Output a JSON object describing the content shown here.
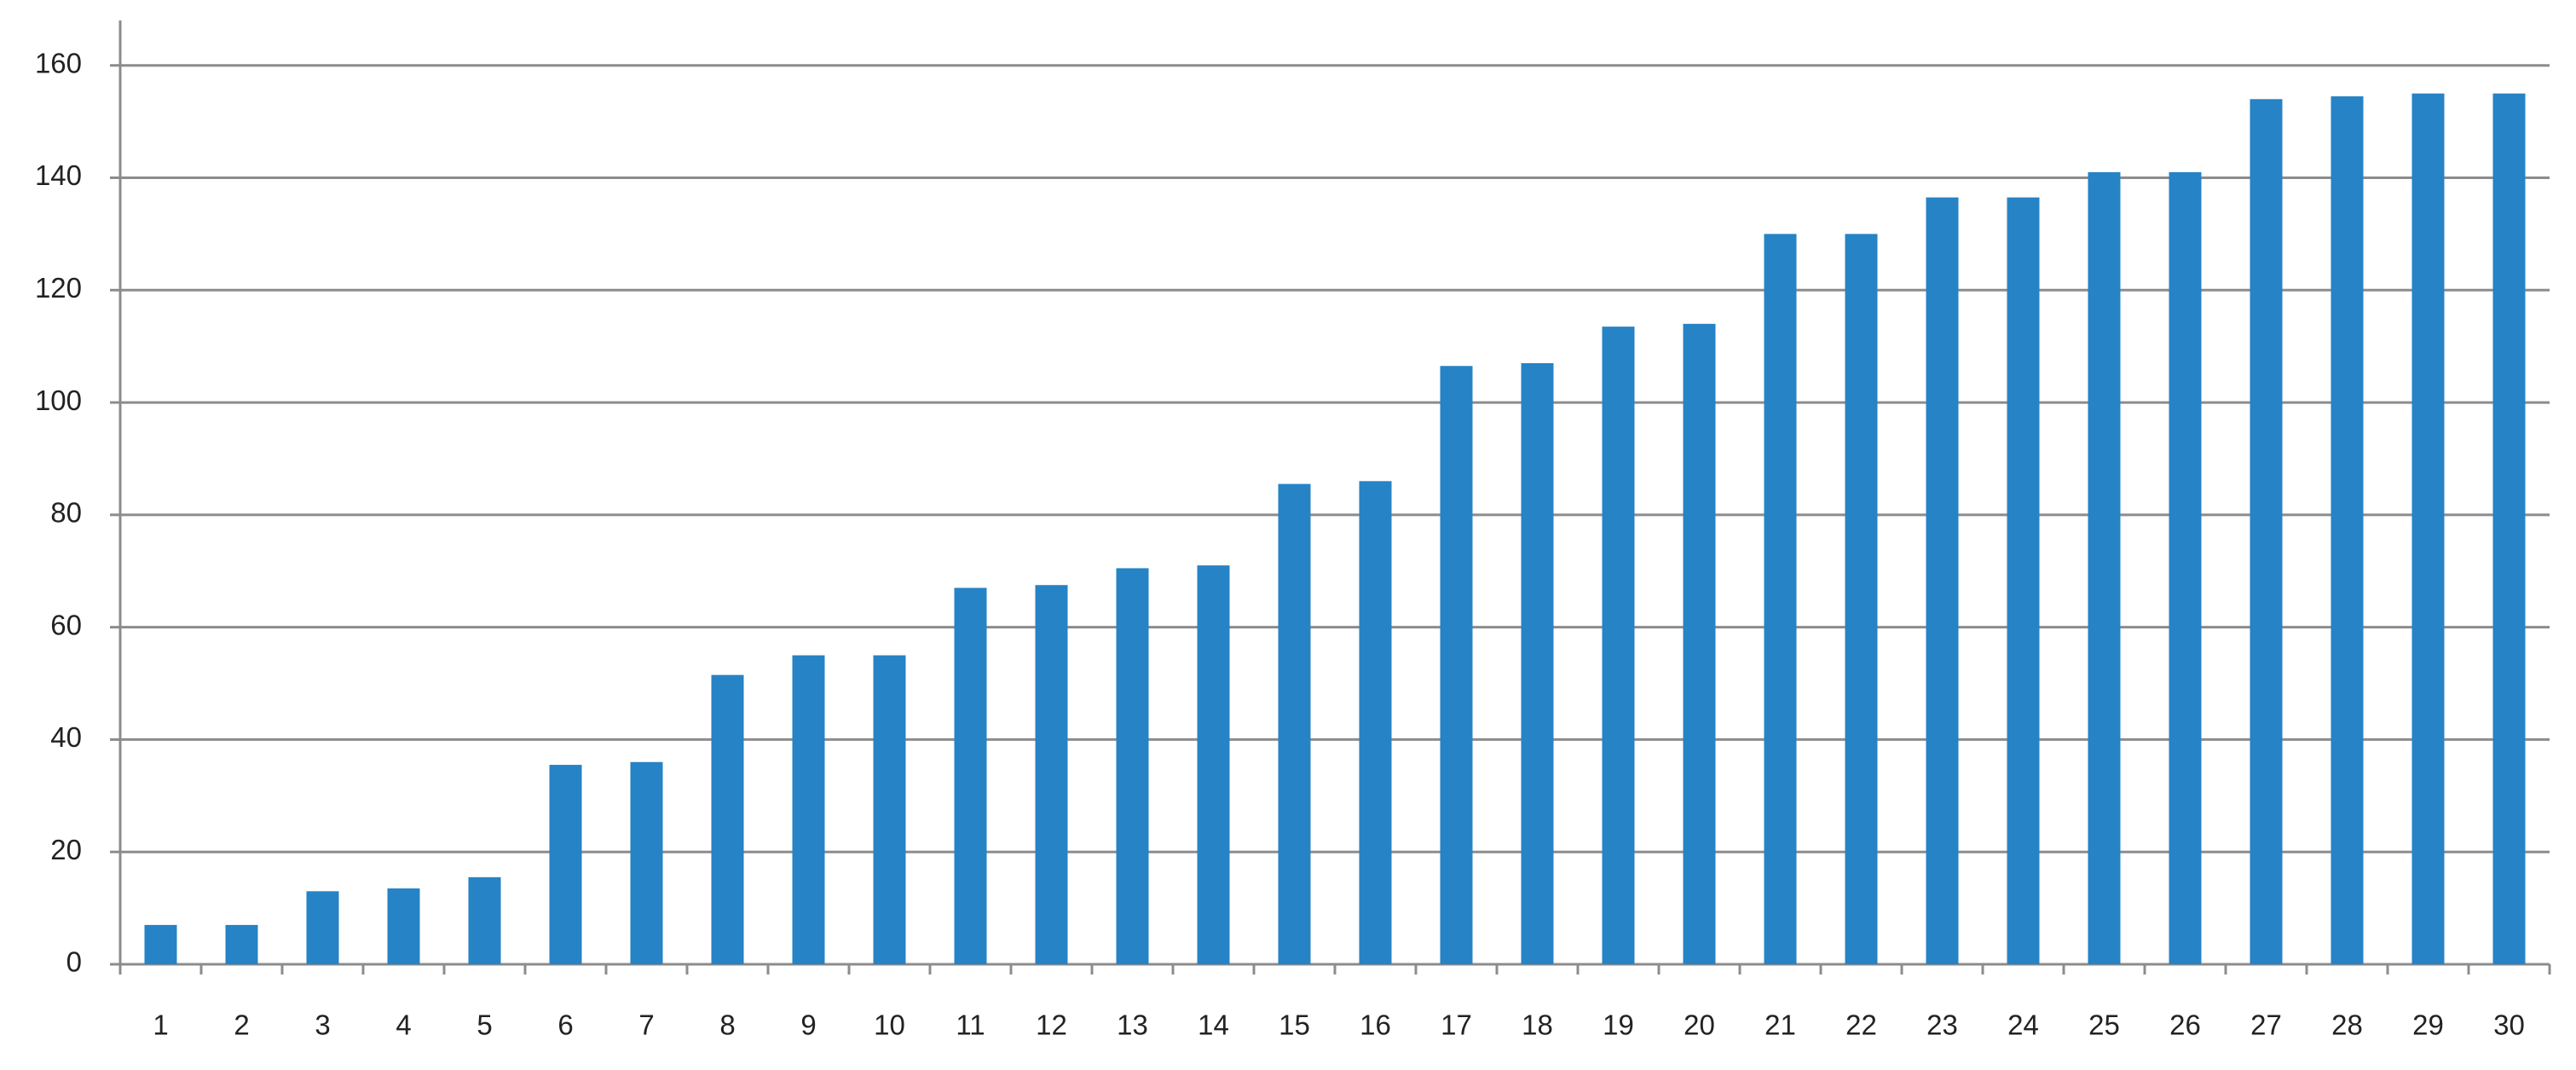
{
  "chart_data": {
    "type": "bar",
    "categories": [
      "1",
      "2",
      "3",
      "4",
      "5",
      "6",
      "7",
      "8",
      "9",
      "10",
      "11",
      "12",
      "13",
      "14",
      "15",
      "16",
      "17",
      "18",
      "19",
      "20",
      "21",
      "22",
      "23",
      "24",
      "25",
      "26",
      "27",
      "28",
      "29",
      "30"
    ],
    "values": [
      7,
      7,
      13,
      13.5,
      15.5,
      35.5,
      36,
      51.5,
      55,
      55,
      67,
      67.5,
      70.5,
      71,
      85.5,
      86,
      106.5,
      107,
      113.5,
      114,
      130,
      130,
      136.5,
      136.5,
      141,
      141,
      154,
      154.5,
      155,
      155
    ],
    "color": "#2683c6",
    "ylim": [
      0,
      168
    ],
    "yticks": [
      0,
      20,
      40,
      60,
      80,
      100,
      120,
      140,
      160
    ],
    "grid": true
  }
}
